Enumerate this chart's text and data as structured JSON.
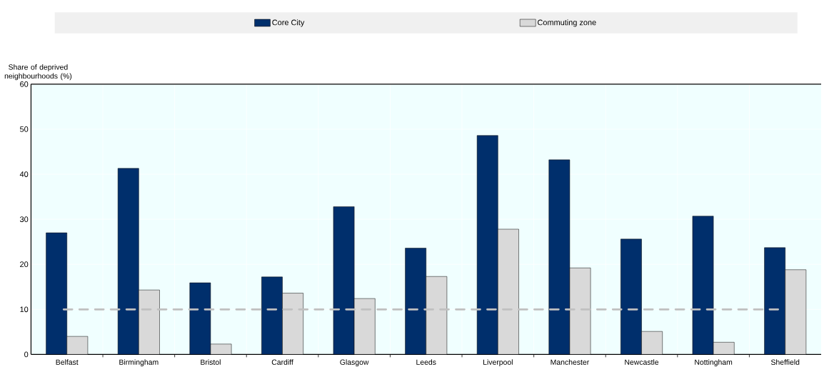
{
  "chart_data": {
    "type": "bar",
    "ylabel": "Share of deprived neighbourhoods (%)",
    "categories": [
      "Belfast",
      "Birmingham",
      "Bristol",
      "Cardiff",
      "Glasgow",
      "Leeds",
      "Liverpool",
      "Manchester",
      "Newcastle",
      "Nottingham",
      "Sheffield"
    ],
    "series": [
      {
        "name": "Core City",
        "color": "#002f6c",
        "values": [
          27.0,
          41.3,
          15.9,
          17.2,
          32.8,
          23.6,
          48.6,
          43.2,
          25.6,
          30.7,
          23.7
        ]
      },
      {
        "name": "Commuting zone",
        "color": "#d9d9d9",
        "values": [
          4.0,
          14.3,
          2.3,
          13.6,
          12.4,
          17.3,
          27.8,
          19.2,
          5.1,
          2.7,
          18.8
        ]
      }
    ],
    "ylim": [
      0,
      60
    ],
    "yticks": [
      0,
      10,
      20,
      30,
      40,
      50,
      60
    ],
    "grid": true,
    "legend": "top",
    "ref_lines": [
      {
        "axis": "y",
        "value": 10,
        "color": "#c0c0c0",
        "line_style": "dashed"
      }
    ]
  }
}
